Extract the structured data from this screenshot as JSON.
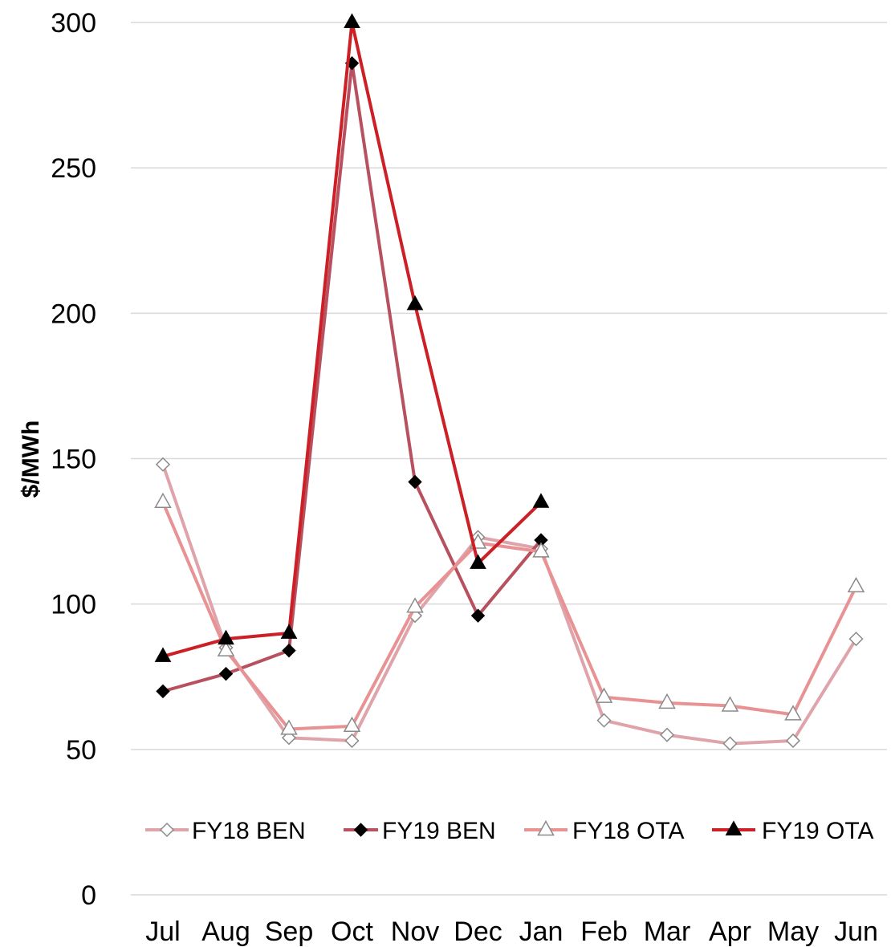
{
  "chart_data": {
    "type": "line",
    "title": "",
    "xlabel": "",
    "ylabel": "$/MWh",
    "ylim": [
      0,
      300
    ],
    "yticks": [
      0,
      50,
      100,
      150,
      200,
      250,
      300
    ],
    "categories": [
      "Jul",
      "Aug",
      "Sep",
      "Oct",
      "Nov",
      "Dec",
      "Jan",
      "Feb",
      "Mar",
      "Apr",
      "May",
      "Jun"
    ],
    "grid": true,
    "legend_position": "bottom-inside",
    "series": [
      {
        "name": "FY18 BEN",
        "color": "#dfa3aa",
        "marker": "diamond-open",
        "values": [
          148,
          85,
          54,
          53,
          96,
          123,
          119,
          60,
          55,
          52,
          53,
          88
        ]
      },
      {
        "name": "FY19 BEN",
        "color": "#b8515f",
        "marker": "diamond-filled",
        "values": [
          70,
          76,
          84,
          286,
          142,
          96,
          122,
          null,
          null,
          null,
          null,
          null
        ]
      },
      {
        "name": "FY18 OTA",
        "color": "#e89294",
        "marker": "triangle-open",
        "values": [
          135,
          84,
          57,
          58,
          99,
          121,
          118,
          68,
          66,
          65,
          62,
          106
        ]
      },
      {
        "name": "FY19 OTA",
        "color": "#cc1f26",
        "marker": "triangle-filled",
        "values": [
          82,
          88,
          90,
          300,
          203,
          114,
          135,
          null,
          null,
          null,
          null,
          null
        ]
      }
    ]
  }
}
